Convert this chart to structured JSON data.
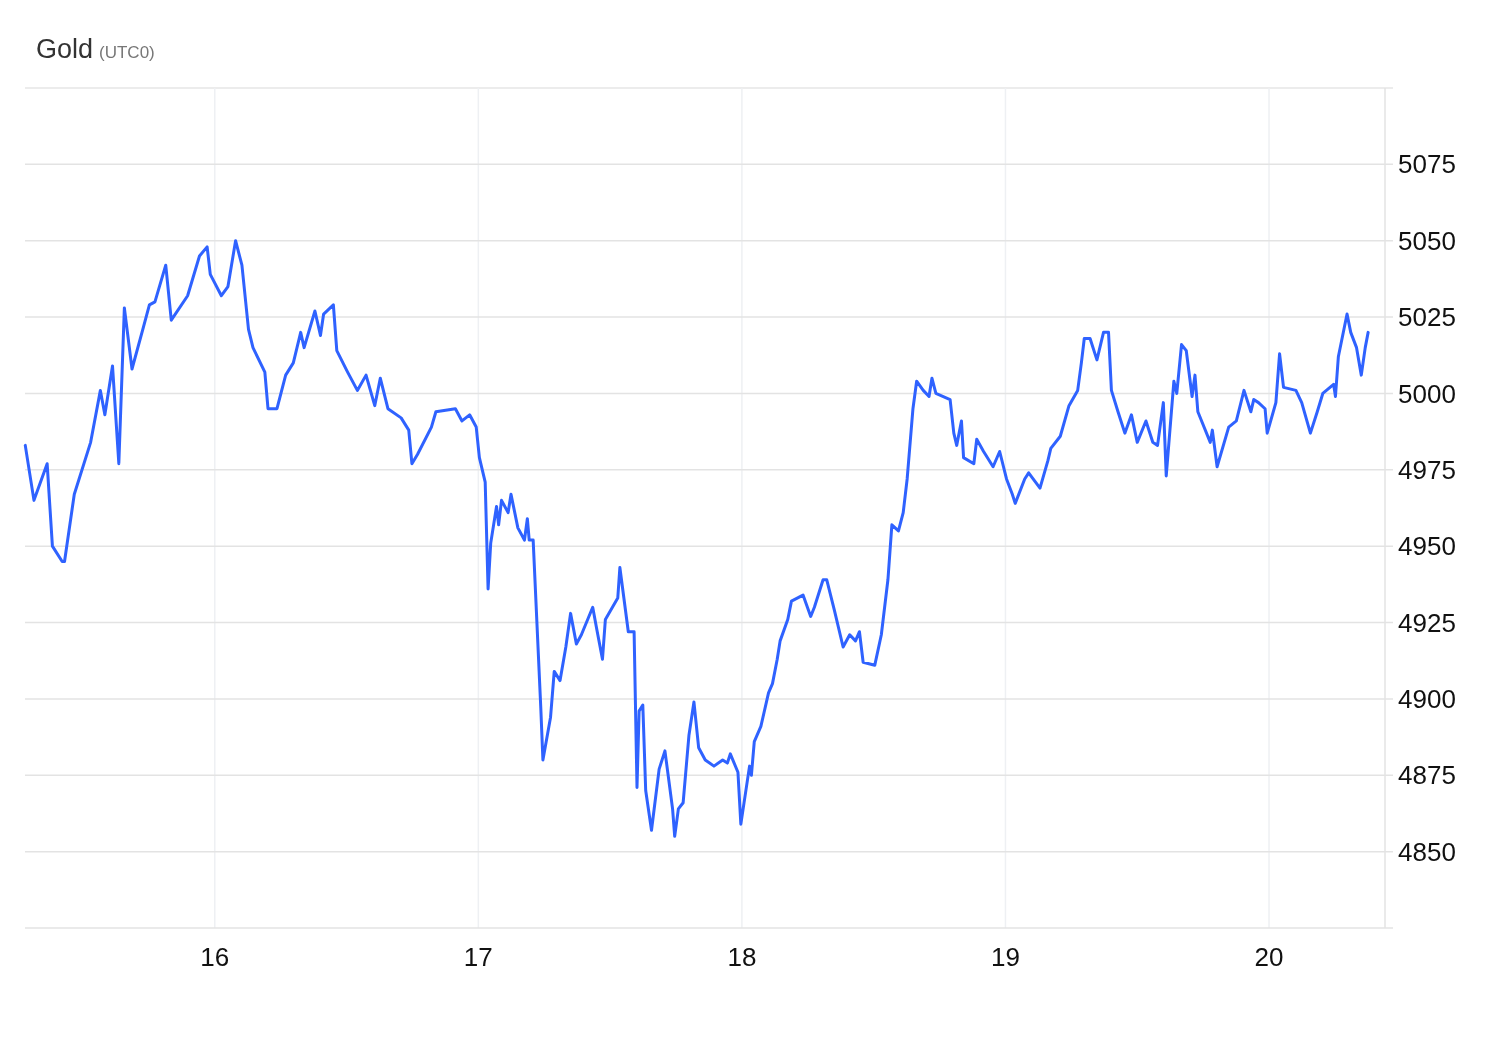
{
  "chart_data": {
    "type": "line",
    "title": "Gold",
    "subtitle": "(UTC0)",
    "x": [
      15.281,
      15.314,
      15.364,
      15.384,
      15.421,
      15.43,
      15.467,
      15.529,
      15.566,
      15.583,
      15.612,
      15.636,
      15.657,
      15.686,
      15.727,
      15.752,
      15.773,
      15.814,
      15.835,
      15.897,
      15.942,
      15.971,
      15.983,
      16.025,
      16.05,
      16.079,
      16.103,
      16.128,
      16.145,
      16.19,
      16.202,
      16.236,
      16.269,
      16.298,
      16.326,
      16.339,
      16.38,
      16.401,
      16.413,
      16.45,
      16.463,
      16.504,
      16.541,
      16.574,
      16.607,
      16.628,
      16.657,
      16.707,
      16.736,
      16.748,
      16.769,
      16.822,
      16.839,
      16.913,
      16.938,
      16.967,
      16.992,
      17.004,
      17.026,
      17.037,
      17.047,
      17.069,
      17.077,
      17.088,
      17.113,
      17.124,
      17.15,
      17.175,
      17.186,
      17.193,
      17.208,
      17.237,
      17.245,
      17.274,
      17.288,
      17.31,
      17.332,
      17.35,
      17.372,
      17.391,
      17.434,
      17.449,
      17.471,
      17.482,
      17.529,
      17.537,
      17.569,
      17.591,
      17.602,
      17.61,
      17.624,
      17.635,
      17.657,
      17.686,
      17.708,
      17.737,
      17.745,
      17.759,
      17.777,
      17.799,
      17.818,
      17.836,
      17.861,
      17.894,
      17.927,
      17.945,
      17.956,
      17.985,
      17.996,
      18.029,
      18.036,
      18.047,
      18.072,
      18.101,
      18.116,
      18.134,
      18.145,
      18.174,
      18.188,
      18.232,
      18.261,
      18.275,
      18.308,
      18.322,
      18.351,
      18.384,
      18.409,
      18.431,
      18.446,
      18.46,
      18.504,
      18.529,
      18.554,
      18.569,
      18.594,
      18.612,
      18.627,
      18.649,
      18.663,
      18.688,
      18.71,
      18.721,
      18.736,
      18.79,
      18.804,
      18.815,
      18.833,
      18.841,
      18.88,
      18.891,
      18.917,
      18.953,
      18.978,
      19.004,
      19.026,
      19.037,
      19.073,
      19.088,
      19.131,
      19.161,
      19.172,
      19.208,
      19.241,
      19.274,
      19.288,
      19.299,
      19.321,
      19.347,
      19.372,
      19.391,
      19.402,
      19.427,
      19.453,
      19.478,
      19.5,
      19.533,
      19.559,
      19.577,
      19.599,
      19.61,
      19.639,
      19.65,
      19.668,
      19.686,
      19.708,
      19.719,
      19.73,
      19.777,
      19.785,
      19.803,
      19.847,
      19.876,
      19.905,
      19.931,
      19.942,
      19.96,
      19.985,
      19.993,
      20.026,
      20.04,
      20.055,
      20.102,
      20.124,
      20.157,
      20.183,
      20.204,
      20.245,
      20.252,
      20.263,
      20.296,
      20.31,
      20.332,
      20.35,
      20.365,
      20.376
    ],
    "series": [
      {
        "color": "#2f62ff",
        "values": [
          4983,
          4965,
          4977,
          4950,
          4945,
          4945,
          4967,
          4984,
          5001,
          4993,
          5009,
          4977,
          5028,
          5008,
          5021,
          5029,
          5030,
          5042,
          5024,
          5032,
          5045,
          5048,
          5039,
          5032,
          5035,
          5050,
          5042,
          5021,
          5015,
          5007,
          4995,
          4995,
          5006,
          5010,
          5020,
          5015,
          5027,
          5019,
          5026,
          5029,
          5014,
          5007,
          5001,
          5006,
          4996,
          5005,
          4995,
          4992,
          4988,
          4977,
          4980,
          4989,
          4994,
          4995,
          4991,
          4993,
          4989,
          4979,
          4971,
          4936,
          4951,
          4963,
          4957,
          4965,
          4961,
          4967,
          4956,
          4952,
          4959,
          4952,
          4952,
          4897,
          4880,
          4894,
          4909,
          4906,
          4917,
          4928,
          4918,
          4921,
          4930,
          4923,
          4913,
          4926,
          4933,
          4943,
          4922,
          4922,
          4871,
          4896,
          4898,
          4870,
          4857,
          4877,
          4883,
          4864,
          4855,
          4864,
          4866,
          4888,
          4899,
          4884,
          4880,
          4878,
          4880,
          4879,
          4882,
          4876,
          4859,
          4878,
          4875,
          4886,
          4891,
          4902,
          4905,
          4913,
          4919,
          4926,
          4932,
          4934,
          4927,
          4930,
          4939,
          4939,
          4929,
          4917,
          4921,
          4919,
          4922,
          4912,
          4911,
          4921,
          4939,
          4957,
          4955,
          4961,
          4972,
          4995,
          5004,
          5001,
          4999,
          5005,
          5000,
          4998,
          4987,
          4983,
          4991,
          4979,
          4977,
          4985,
          4981,
          4976,
          4981,
          4972,
          4967,
          4964,
          4972,
          4974,
          4969,
          4978,
          4982,
          4986,
          4996,
          5001,
          5010,
          5018,
          5018,
          5011,
          5020,
          5020,
          5001,
          4994,
          4987,
          4993,
          4984,
          4991,
          4984,
          4983,
          4997,
          4973,
          5004,
          5000,
          5016,
          5014,
          4999,
          5006,
          4994,
          4984,
          4988,
          4976,
          4989,
          4991,
          5001,
          4994,
          4998,
          4997,
          4995,
          4987,
          4997,
          5013,
          5002,
          5001,
          4997,
          4987,
          4994,
          5000,
          5003,
          4999,
          5012,
          5026,
          5020,
          5015,
          5006,
          5015,
          5020
        ]
      }
    ],
    "xlim": [
      15.28,
      20.44
    ],
    "xticks": [
      16,
      17,
      18,
      19,
      20
    ],
    "ylim": [
      4825,
      5100
    ],
    "yticks": [
      4850,
      4875,
      4900,
      4925,
      4950,
      4975,
      5000,
      5025,
      5050,
      5075
    ],
    "grid": true,
    "line_style": "solid",
    "marker": "none"
  }
}
